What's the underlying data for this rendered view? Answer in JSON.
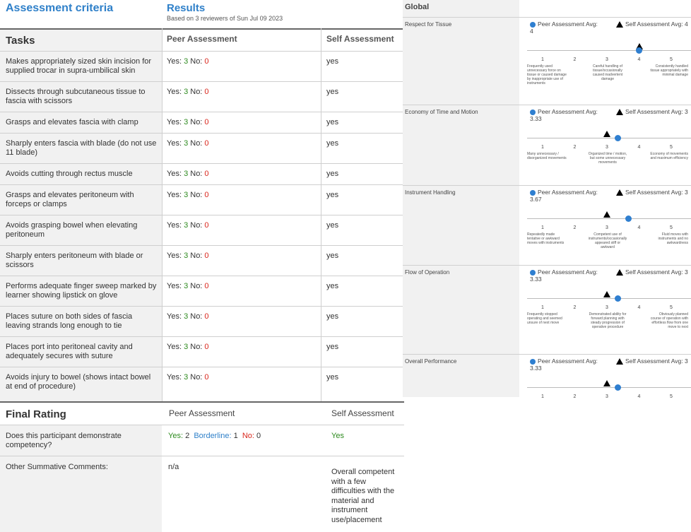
{
  "left": {
    "title": "Assessment criteria",
    "results_title": "Results",
    "results_subtitle": "Based on 3 reviewers of Sun Jul 09 2023",
    "tasks_header": "Tasks",
    "peer_header": "Peer Assessment",
    "self_header": "Self Assessment",
    "yes_label": "Yes: ",
    "no_label": " No: ",
    "tasks": [
      {
        "task": "Makes appropriately sized skin incision for supplied trocar in supra-umbilical skin",
        "yes": "3",
        "no": "0",
        "self": "yes"
      },
      {
        "task": "Dissects through subcutaneous tissue to fascia with scissors",
        "yes": "3",
        "no": "0",
        "self": "yes"
      },
      {
        "task": "Grasps and elevates fascia with clamp",
        "yes": "3",
        "no": "0",
        "self": "yes"
      },
      {
        "task": "Sharply enters fascia with blade (do not use 11 blade)",
        "yes": "3",
        "no": "0",
        "self": "yes"
      },
      {
        "task": "Avoids cutting through rectus muscle",
        "yes": "3",
        "no": "0",
        "self": "yes"
      },
      {
        "task": "Grasps and elevates peritoneum with forceps or clamps",
        "yes": "3",
        "no": "0",
        "self": "yes"
      },
      {
        "task": "Avoids grasping bowel when elevating peritoneum",
        "yes": "3",
        "no": "0",
        "self": "yes"
      },
      {
        "task": "Sharply enters peritoneum with blade or scissors",
        "yes": "3",
        "no": "0",
        "self": "yes"
      },
      {
        "task": "Performs adequate finger sweep marked by learner showing lipstick on glove",
        "yes": "3",
        "no": "0",
        "self": "yes"
      },
      {
        "task": "Places suture on both sides of fascia leaving strands long enough to tie",
        "yes": "3",
        "no": "0",
        "self": "yes"
      },
      {
        "task": "Places port into peritoneal cavity and adequately secures with suture",
        "yes": "3",
        "no": "0",
        "self": "yes"
      },
      {
        "task": "Avoids injury to bowel (shows intact bowel at end of procedure)",
        "yes": "3",
        "no": "0",
        "self": "yes"
      }
    ],
    "final_rating": {
      "header": "Final Rating",
      "peer_header": "Peer Assessment",
      "self_header": "Self Assessment",
      "competency_q": "Does this participant demonstrate competency?",
      "comp_yes_label": "Yes:",
      "comp_yes": "2",
      "comp_border_label": "Borderline:",
      "comp_border": "1",
      "comp_no_label": "No:",
      "comp_no": "0",
      "comp_self": "Yes",
      "comments_q": "Other Summative Comments:",
      "comments_peer": "n/a",
      "comments_self": "Overall competent with a few difficulties with the material and instrument use/placement"
    }
  },
  "right": {
    "global_title": "Global",
    "scale_numbers": [
      "1",
      "2",
      "3",
      "4",
      "5"
    ],
    "categories": [
      {
        "name": "Respect for Tissue",
        "peer": "Peer Assessment Avg: 4",
        "self": "Self Assessment Avg: 4",
        "peer_value": 4,
        "self_value": 4,
        "desc": [
          "Frequently used unnecessary force on tissue or caused damage by inappropriate use of instruments",
          "Careful handling of tissue/occasionally caused inadvertent damage",
          "Consistently handled tissue appropriately with minimal damage"
        ]
      },
      {
        "name": "Economy of Time and Motion",
        "peer": "Peer Assessment Avg: 3.33",
        "self": "Self Assessment Avg: 3",
        "peer_value": 3.33,
        "self_value": 3,
        "desc": [
          "Many unnecessary / disorganized movements",
          "Organized time / motion, but some unnecessary movements",
          "Economy of movements and maximum efficiency"
        ]
      },
      {
        "name": "Instrument Handling",
        "peer": "Peer Assessment Avg: 3.67",
        "self": "Self Assessment Avg: 3",
        "peer_value": 3.67,
        "self_value": 3,
        "desc": [
          "Repeatedly made tentative or awkward moves with instruments",
          "Competent use of instruments/occasionally appeared stiff or awkward",
          "Fluid moves with instruments and no awkwardness"
        ]
      },
      {
        "name": "Flow of Operation",
        "peer": "Peer Assessment Avg: 3.33",
        "self": "Self Assessment Avg: 3",
        "peer_value": 3.33,
        "self_value": 3,
        "desc": [
          "Frequently stopped operating and seemed unsure of next move",
          "Demonstrated ability for forward planning with steady progression of operative procedure",
          "Obviously planned course of operation with effortless flow from one move to next"
        ]
      },
      {
        "name": "Overall Performance",
        "peer": "Peer Assessment Avg: 3.33",
        "self": "Self Assessment Avg: 3",
        "peer_value": 3.33,
        "self_value": 3,
        "desc": [
          "",
          "",
          ""
        ]
      }
    ]
  }
}
